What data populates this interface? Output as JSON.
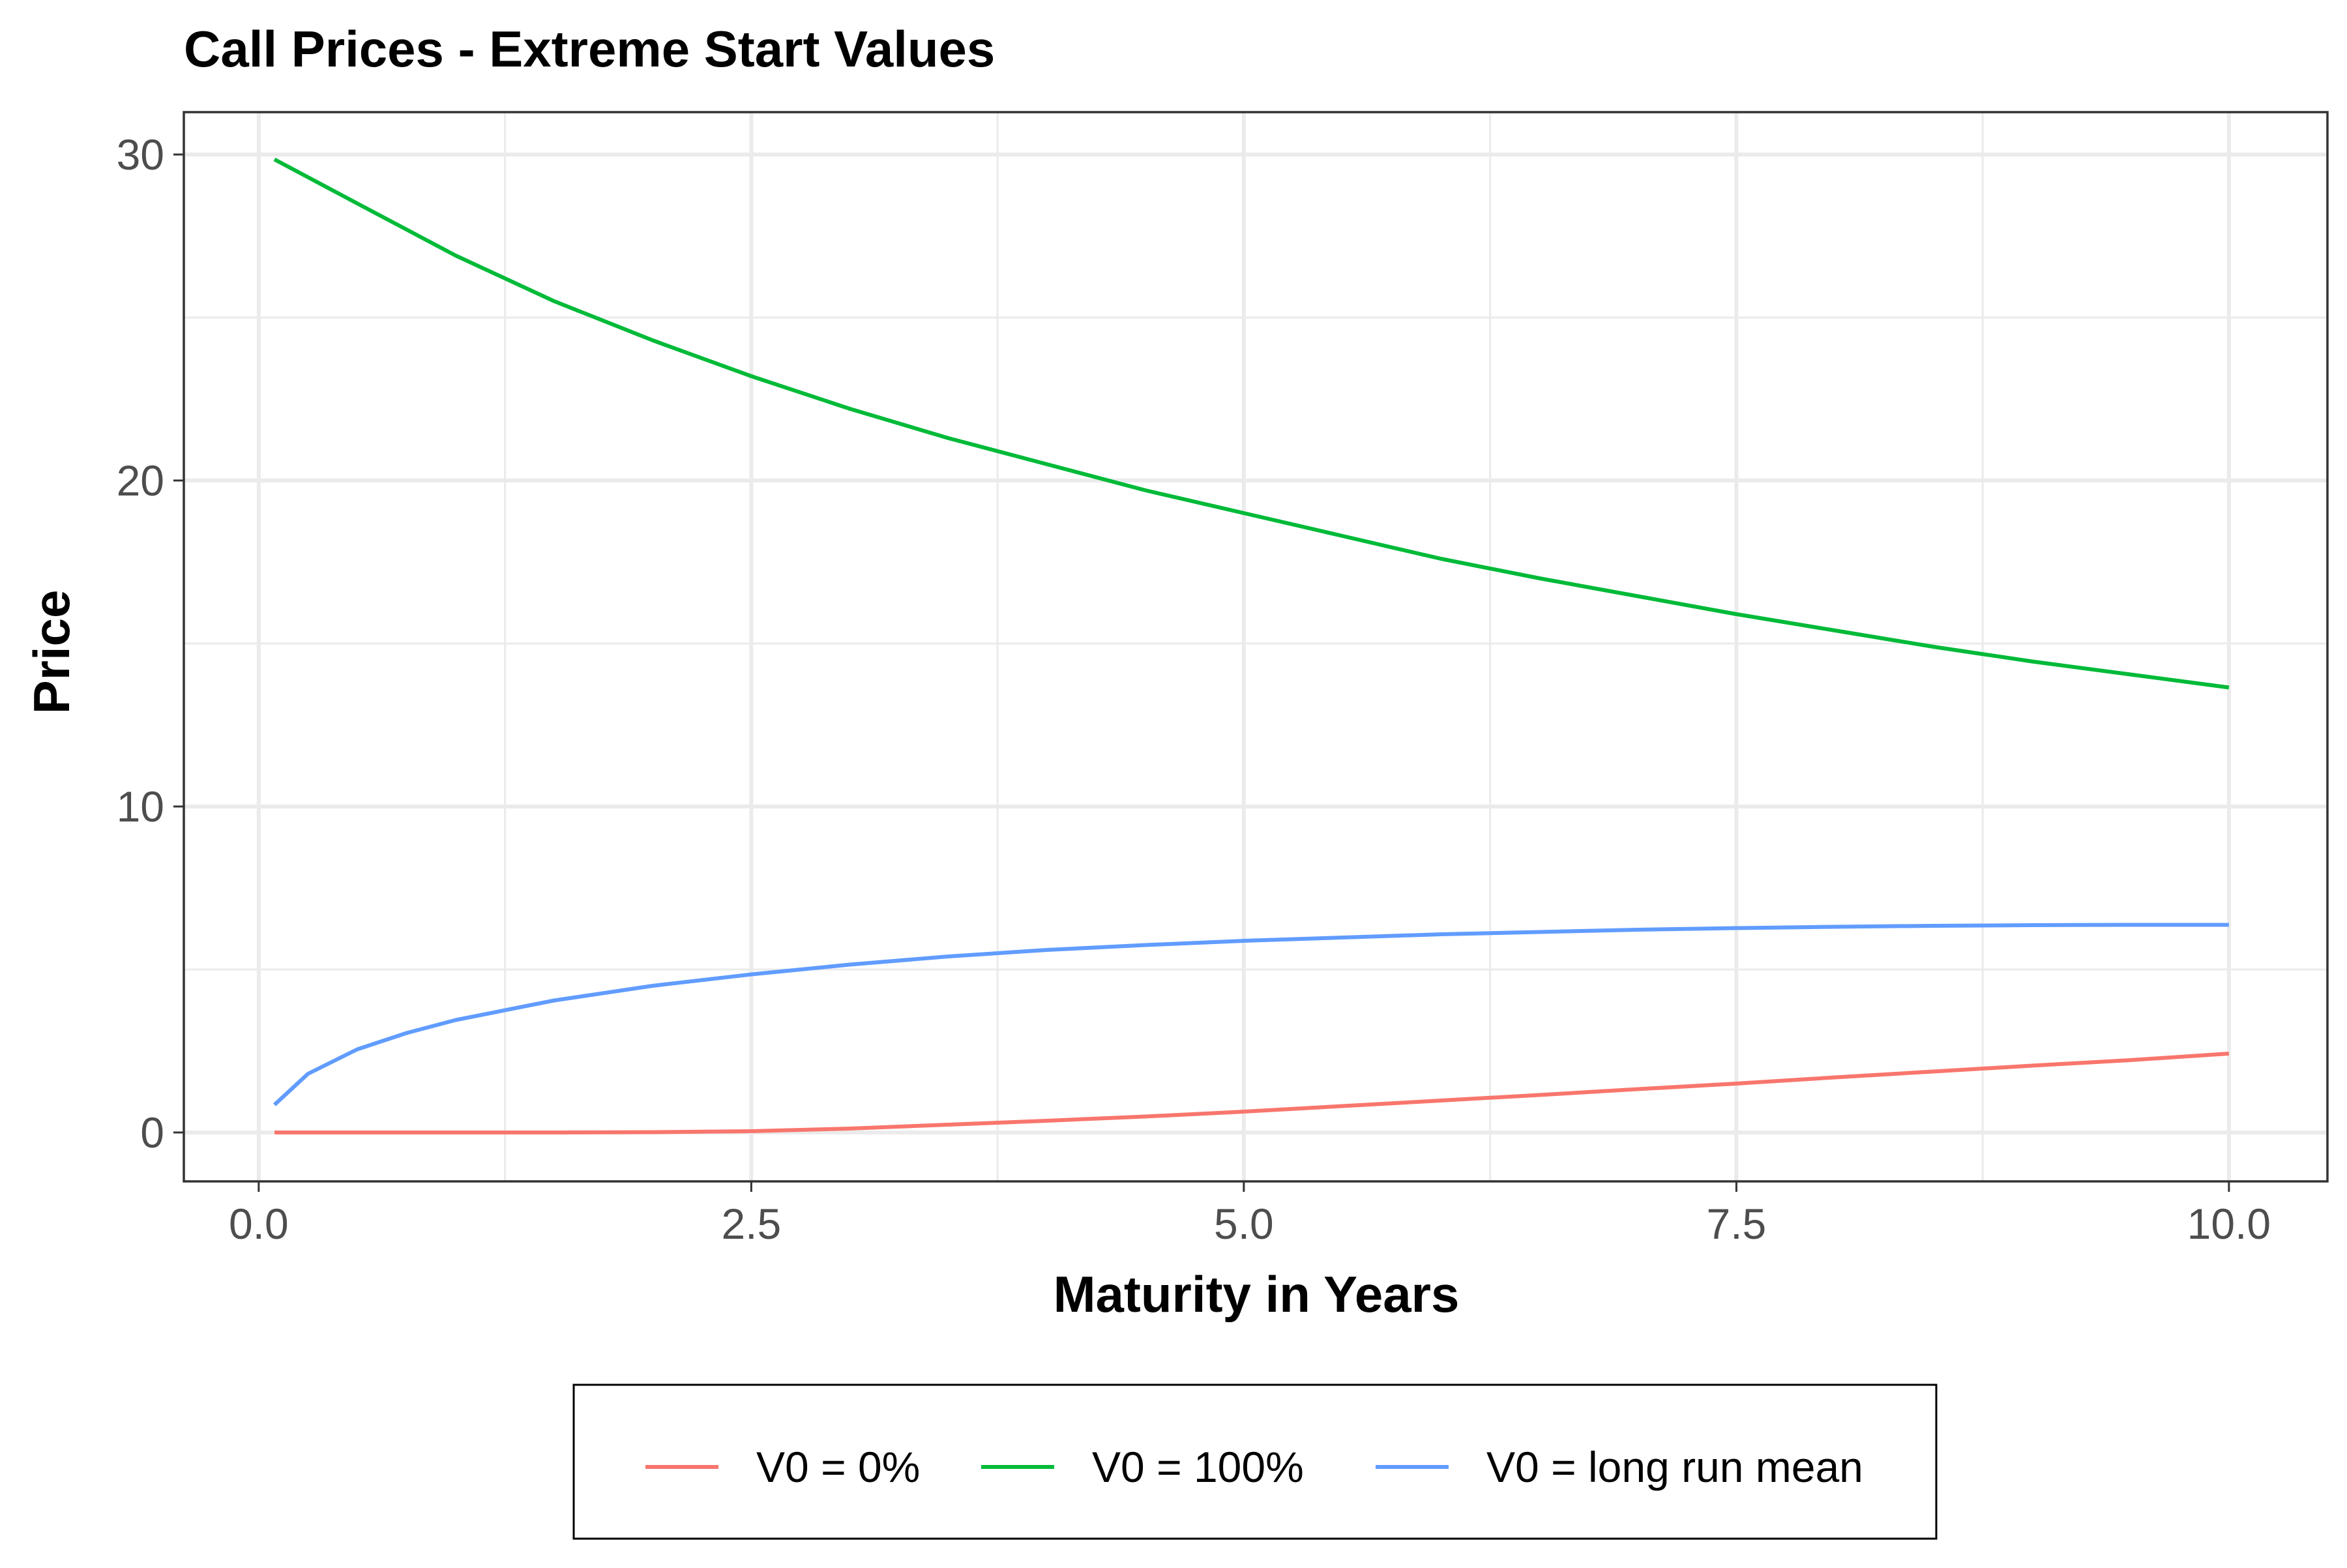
{
  "chart_data": {
    "type": "line",
    "title": "Call Prices - Extreme Start Values",
    "xlabel": "Maturity in Years",
    "ylabel": "Price",
    "xlim": [
      -0.38,
      10.5
    ],
    "ylim": [
      -1.5,
      31.3
    ],
    "x_ticks": [
      0.0,
      2.5,
      5.0,
      7.5,
      10.0
    ],
    "x_tick_labels": [
      "0.0",
      "2.5",
      "5.0",
      "7.5",
      "10.0"
    ],
    "x_minor_ticks": [
      1.25,
      3.75,
      6.25,
      8.75
    ],
    "y_ticks": [
      0,
      10,
      20,
      30
    ],
    "y_tick_labels": [
      "0",
      "10",
      "20",
      "30"
    ],
    "y_minor_ticks": [
      5,
      15,
      25
    ],
    "grid": true,
    "legend_position": "bottom",
    "series": [
      {
        "name": "V0 = 0%",
        "color": "#F8766D",
        "x": [
          0.08,
          0.5,
          1.0,
          1.5,
          2.0,
          2.5,
          3.0,
          3.5,
          4.0,
          4.5,
          5.0,
          5.5,
          6.0,
          6.5,
          7.0,
          7.5,
          8.0,
          8.5,
          9.0,
          9.5,
          10.0
        ],
        "y": [
          0.0,
          0.0,
          0.0,
          0.0,
          0.01,
          0.04,
          0.12,
          0.24,
          0.36,
          0.49,
          0.64,
          0.81,
          0.98,
          1.15,
          1.33,
          1.5,
          1.69,
          1.87,
          2.05,
          2.22,
          2.42
        ]
      },
      {
        "name": "V0 = 100%",
        "color": "#00BA38",
        "x": [
          0.08,
          0.5,
          1.0,
          1.5,
          2.0,
          2.5,
          3.0,
          3.5,
          4.0,
          4.5,
          5.0,
          5.5,
          6.0,
          6.5,
          7.0,
          7.5,
          8.0,
          8.5,
          9.0,
          9.5,
          10.0
        ],
        "y": [
          29.85,
          28.5,
          26.9,
          25.5,
          24.3,
          23.2,
          22.2,
          21.3,
          20.5,
          19.7,
          19.0,
          18.3,
          17.6,
          17.0,
          16.45,
          15.9,
          15.4,
          14.9,
          14.45,
          14.05,
          13.65
        ]
      },
      {
        "name": "V0 = long run mean",
        "color": "#619CFF",
        "x": [
          0.08,
          0.25,
          0.5,
          0.75,
          1.0,
          1.5,
          2.0,
          2.5,
          3.0,
          3.5,
          4.0,
          4.5,
          5.0,
          5.5,
          6.0,
          6.5,
          7.0,
          7.5,
          8.0,
          8.5,
          9.0,
          9.5,
          10.0
        ],
        "y": [
          0.85,
          1.8,
          2.55,
          3.05,
          3.45,
          4.05,
          4.5,
          4.85,
          5.15,
          5.4,
          5.6,
          5.75,
          5.88,
          5.98,
          6.08,
          6.15,
          6.22,
          6.27,
          6.31,
          6.34,
          6.36,
          6.37,
          6.37
        ]
      }
    ]
  }
}
